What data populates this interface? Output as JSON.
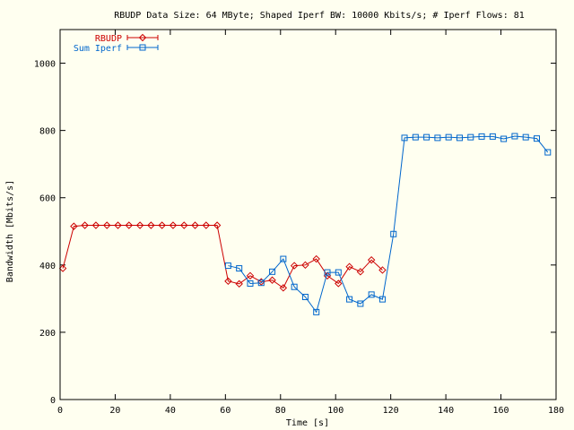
{
  "chart_data": {
    "type": "line",
    "title": "RBUDP Data Size: 64 MByte; Shaped Iperf BW: 10000 Kbits/s; # Iperf Flows: 81",
    "xlabel": "Time [s]",
    "ylabel": "Bandwidth [Mbits/s]",
    "xlim": [
      0,
      180
    ],
    "ylim": [
      0,
      1100
    ],
    "xticks": [
      0,
      20,
      40,
      60,
      80,
      100,
      120,
      140,
      160,
      180
    ],
    "yticks": [
      0,
      200,
      400,
      600,
      800,
      1000
    ],
    "grid": false,
    "legend_position": "top-left",
    "background_color": "#fffff0",
    "series": [
      {
        "name": "RBUDP",
        "color": "#cc0000",
        "marker": "diamond",
        "x": [
          1,
          5,
          9,
          13,
          17,
          21,
          25,
          29,
          33,
          37,
          41,
          45,
          49,
          53,
          57,
          61,
          65,
          69,
          73,
          77,
          81,
          85,
          89,
          93,
          97,
          101,
          105,
          109,
          113,
          117
        ],
        "y": [
          390,
          515,
          518,
          518,
          518,
          518,
          518,
          518,
          518,
          518,
          518,
          518,
          518,
          518,
          518,
          352,
          344,
          368,
          350,
          355,
          332,
          398,
          400,
          418,
          368,
          345,
          395,
          380,
          415,
          385
        ]
      },
      {
        "name": "Sum Iperf",
        "color": "#0066cc",
        "marker": "square",
        "x": [
          61,
          65,
          69,
          73,
          77,
          81,
          85,
          89,
          93,
          97,
          101,
          105,
          109,
          113,
          117,
          121,
          125,
          129,
          133,
          137,
          141,
          145,
          149,
          153,
          157,
          161,
          165,
          169,
          173,
          177
        ],
        "y": [
          398,
          390,
          345,
          347,
          380,
          418,
          335,
          305,
          260,
          378,
          378,
          298,
          285,
          312,
          298,
          492,
          778,
          780,
          780,
          778,
          780,
          778,
          780,
          782,
          782,
          775,
          783,
          780,
          776,
          735
        ]
      }
    ]
  }
}
